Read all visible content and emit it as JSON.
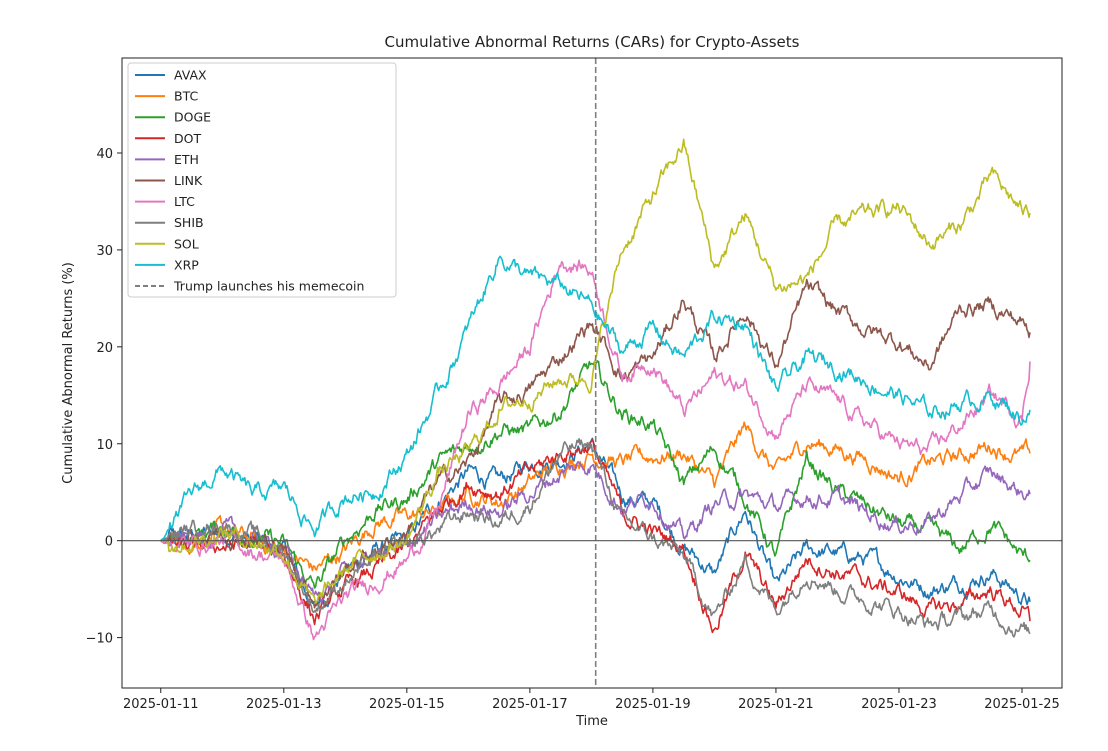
{
  "chart_data": {
    "type": "line",
    "title": "Cumulative Abnormal Returns (CARs) for Crypto-Assets",
    "xlabel": "Time",
    "ylabel": "Cumulative Abnormal Returns (%)",
    "x_unit": "day of January 2025",
    "xlim": [
      10.37,
      25.65
    ],
    "ylim": [
      -15.2,
      49.8
    ],
    "xticks": [
      11,
      13,
      15,
      17,
      19,
      21,
      23,
      25
    ],
    "xtick_labels": [
      "2025-01-11",
      "2025-01-13",
      "2025-01-15",
      "2025-01-17",
      "2025-01-19",
      "2025-01-21",
      "2025-01-23",
      "2025-01-25"
    ],
    "yticks": [
      -10,
      0,
      10,
      20,
      30,
      40
    ],
    "ytick_labels": [
      "−10",
      "0",
      "10",
      "20",
      "30",
      "40"
    ],
    "grid": false,
    "legend_position": "top-left",
    "x": [
      11,
      11.5,
      12,
      12.5,
      13,
      13.5,
      14,
      14.5,
      15,
      15.5,
      16,
      16.5,
      17,
      17.5,
      18,
      18.5,
      19,
      19.5,
      20,
      20.5,
      21,
      21.5,
      22,
      22.5,
      23,
      23.5,
      24,
      24.5,
      25,
      25.13
    ],
    "series": [
      {
        "name": "AVAX",
        "color": "#1f77b4",
        "values": [
          0,
          0.5,
          1,
          0,
          -1,
          -7,
          -3,
          -1,
          0,
          4,
          7,
          6,
          8,
          8.5,
          10,
          4.6,
          3.9,
          -0.6,
          -3.5,
          3.2,
          -5,
          -0.9,
          -1.3,
          -2,
          -3.5,
          -5,
          -4.3,
          -3.2,
          -5.8,
          -6.3
        ]
      },
      {
        "name": "BTC",
        "color": "#ff7f0e",
        "values": [
          0,
          0,
          1,
          0,
          -1,
          -3,
          -1,
          2,
          2.5,
          3,
          5,
          4,
          6,
          8,
          9,
          8,
          8.7,
          9.1,
          5.8,
          11.7,
          6.9,
          10.2,
          9.5,
          8.4,
          6.5,
          8,
          8.7,
          9.9,
          8.7,
          9
        ]
      },
      {
        "name": "DOGE",
        "color": "#2ca02c",
        "values": [
          0,
          0.5,
          1.5,
          0.5,
          -0.5,
          -5,
          0,
          3.3,
          4.3,
          8,
          9.8,
          11.5,
          11.2,
          13.6,
          18,
          13.2,
          12,
          5.8,
          9.5,
          4.6,
          -1.7,
          8.4,
          5,
          3.5,
          1.7,
          0.9,
          -0.9,
          1.7,
          -1.7,
          -2
        ]
      },
      {
        "name": "DOT",
        "color": "#d62728",
        "values": [
          0,
          -1,
          -0.5,
          -0.5,
          -1.5,
          -8,
          -5,
          -3,
          -1,
          3,
          6,
          5,
          7,
          9,
          10,
          2.8,
          0.9,
          -0.6,
          -9.1,
          -1.3,
          -6.9,
          -1.7,
          -3.2,
          -4.3,
          -5.4,
          -7.2,
          -6.5,
          -5,
          -7.2,
          -8.3
        ]
      },
      {
        "name": "ETH",
        "color": "#9467bd",
        "values": [
          0,
          0,
          1,
          0,
          -1,
          -6,
          -3,
          -1.5,
          -0.5,
          2,
          4,
          3,
          5,
          7,
          8,
          3.5,
          4.6,
          0.2,
          3.9,
          4.6,
          3.5,
          4.6,
          4.3,
          2.8,
          1.7,
          2,
          4.6,
          6.9,
          5,
          4.8
        ]
      },
      {
        "name": "LINK",
        "color": "#8c564b",
        "values": [
          0,
          0.5,
          1,
          0,
          -1,
          -6,
          -3,
          -1,
          1,
          6,
          8,
          14,
          15.6,
          19,
          22.5,
          17,
          18.8,
          25,
          18.8,
          24,
          18,
          26,
          23.6,
          21.7,
          20.6,
          18,
          24,
          24.3,
          22.5,
          21.5
        ]
      },
      {
        "name": "LTC",
        "color": "#e377c2",
        "values": [
          0,
          -0.5,
          0,
          -1,
          -2,
          -10,
          -6,
          -4,
          -2,
          3,
          13,
          16,
          20,
          29,
          28,
          17,
          18.8,
          13.2,
          17,
          15.8,
          11.3,
          15.8,
          14.3,
          12,
          9.9,
          9.1,
          12,
          15,
          12.8,
          18.5
        ]
      },
      {
        "name": "SHIB",
        "color": "#7f7f7f",
        "values": [
          0,
          1,
          2,
          0.5,
          -1,
          -7,
          -4,
          -2,
          -0.5,
          1,
          3,
          2,
          4,
          9,
          10,
          2,
          0.2,
          -1.7,
          -8,
          -2,
          -7.2,
          -2.8,
          -5,
          -6.1,
          -7.2,
          -8.7,
          -8,
          -7.2,
          -9.1,
          -9.6
        ]
      },
      {
        "name": "SOL",
        "color": "#bcbd22",
        "values": [
          0,
          0,
          1,
          0,
          -1,
          -7,
          -3,
          -1,
          0,
          7,
          9,
          13.6,
          15,
          16.7,
          17,
          30,
          35.5,
          41,
          28,
          33.6,
          26,
          27,
          32.5,
          33.6,
          34.4,
          30.7,
          32.5,
          37.5,
          34,
          33.8
        ]
      },
      {
        "name": "XRP",
        "color": "#17becf",
        "values": [
          0,
          4.6,
          7.4,
          4.6,
          5.3,
          1.2,
          4.6,
          5.3,
          8.8,
          15,
          21.8,
          29.5,
          27,
          26.3,
          24.2,
          19.5,
          22,
          18.8,
          23,
          22.5,
          15.4,
          18.8,
          18,
          16.5,
          15,
          13.2,
          14.3,
          15,
          12.8,
          13.5
        ]
      }
    ],
    "annotations": [
      {
        "type": "vline",
        "x": 18.07,
        "style": "dashed",
        "color": "#7f7f7f",
        "label": "Trump launches his memecoin"
      },
      {
        "type": "hline",
        "y": 0,
        "color": "#555555"
      }
    ]
  }
}
